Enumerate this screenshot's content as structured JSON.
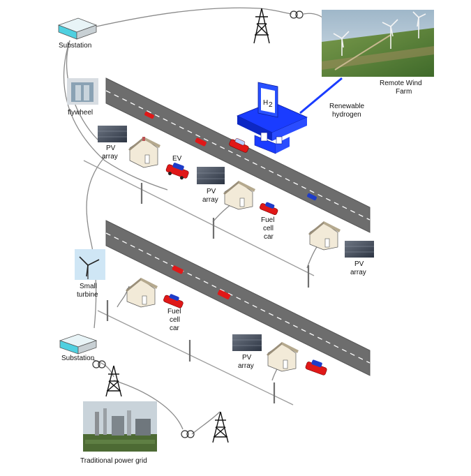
{
  "labels": {
    "substation_top": "Substation",
    "substation_bottom": "Substation",
    "flywheel": "flywheel",
    "remote_wind_farm_1": "Remote Wind",
    "remote_wind_farm_2": "Farm",
    "renewable_hydrogen_1": "Renewable",
    "renewable_hydrogen_2": "hydrogen",
    "h2": "H",
    "h2_sub": "2",
    "pv1_a": "PV",
    "pv1_b": "array",
    "ev": "EV",
    "pv2_a": "PV",
    "pv2_b": "array",
    "fuel1_a": "Fuel",
    "fuel1_b": "cell",
    "fuel1_c": "car",
    "pv3_a": "PV",
    "pv3_b": "array",
    "small_turbine_1": "Small",
    "small_turbine_2": "turbine",
    "fuel2_a": "Fuel",
    "fuel2_b": "cell",
    "fuel2_c": "car",
    "pv4_a": "PV",
    "pv4_b": "array",
    "traditional_power_grid": "Traditional power grid"
  },
  "colors": {
    "road": "#6d6d6d",
    "road_edge": "#555555",
    "station_blue": "#1a3cff",
    "car_red": "#e01818",
    "line_gray": "#8a8a8a",
    "house_wall": "#f2ead8"
  }
}
